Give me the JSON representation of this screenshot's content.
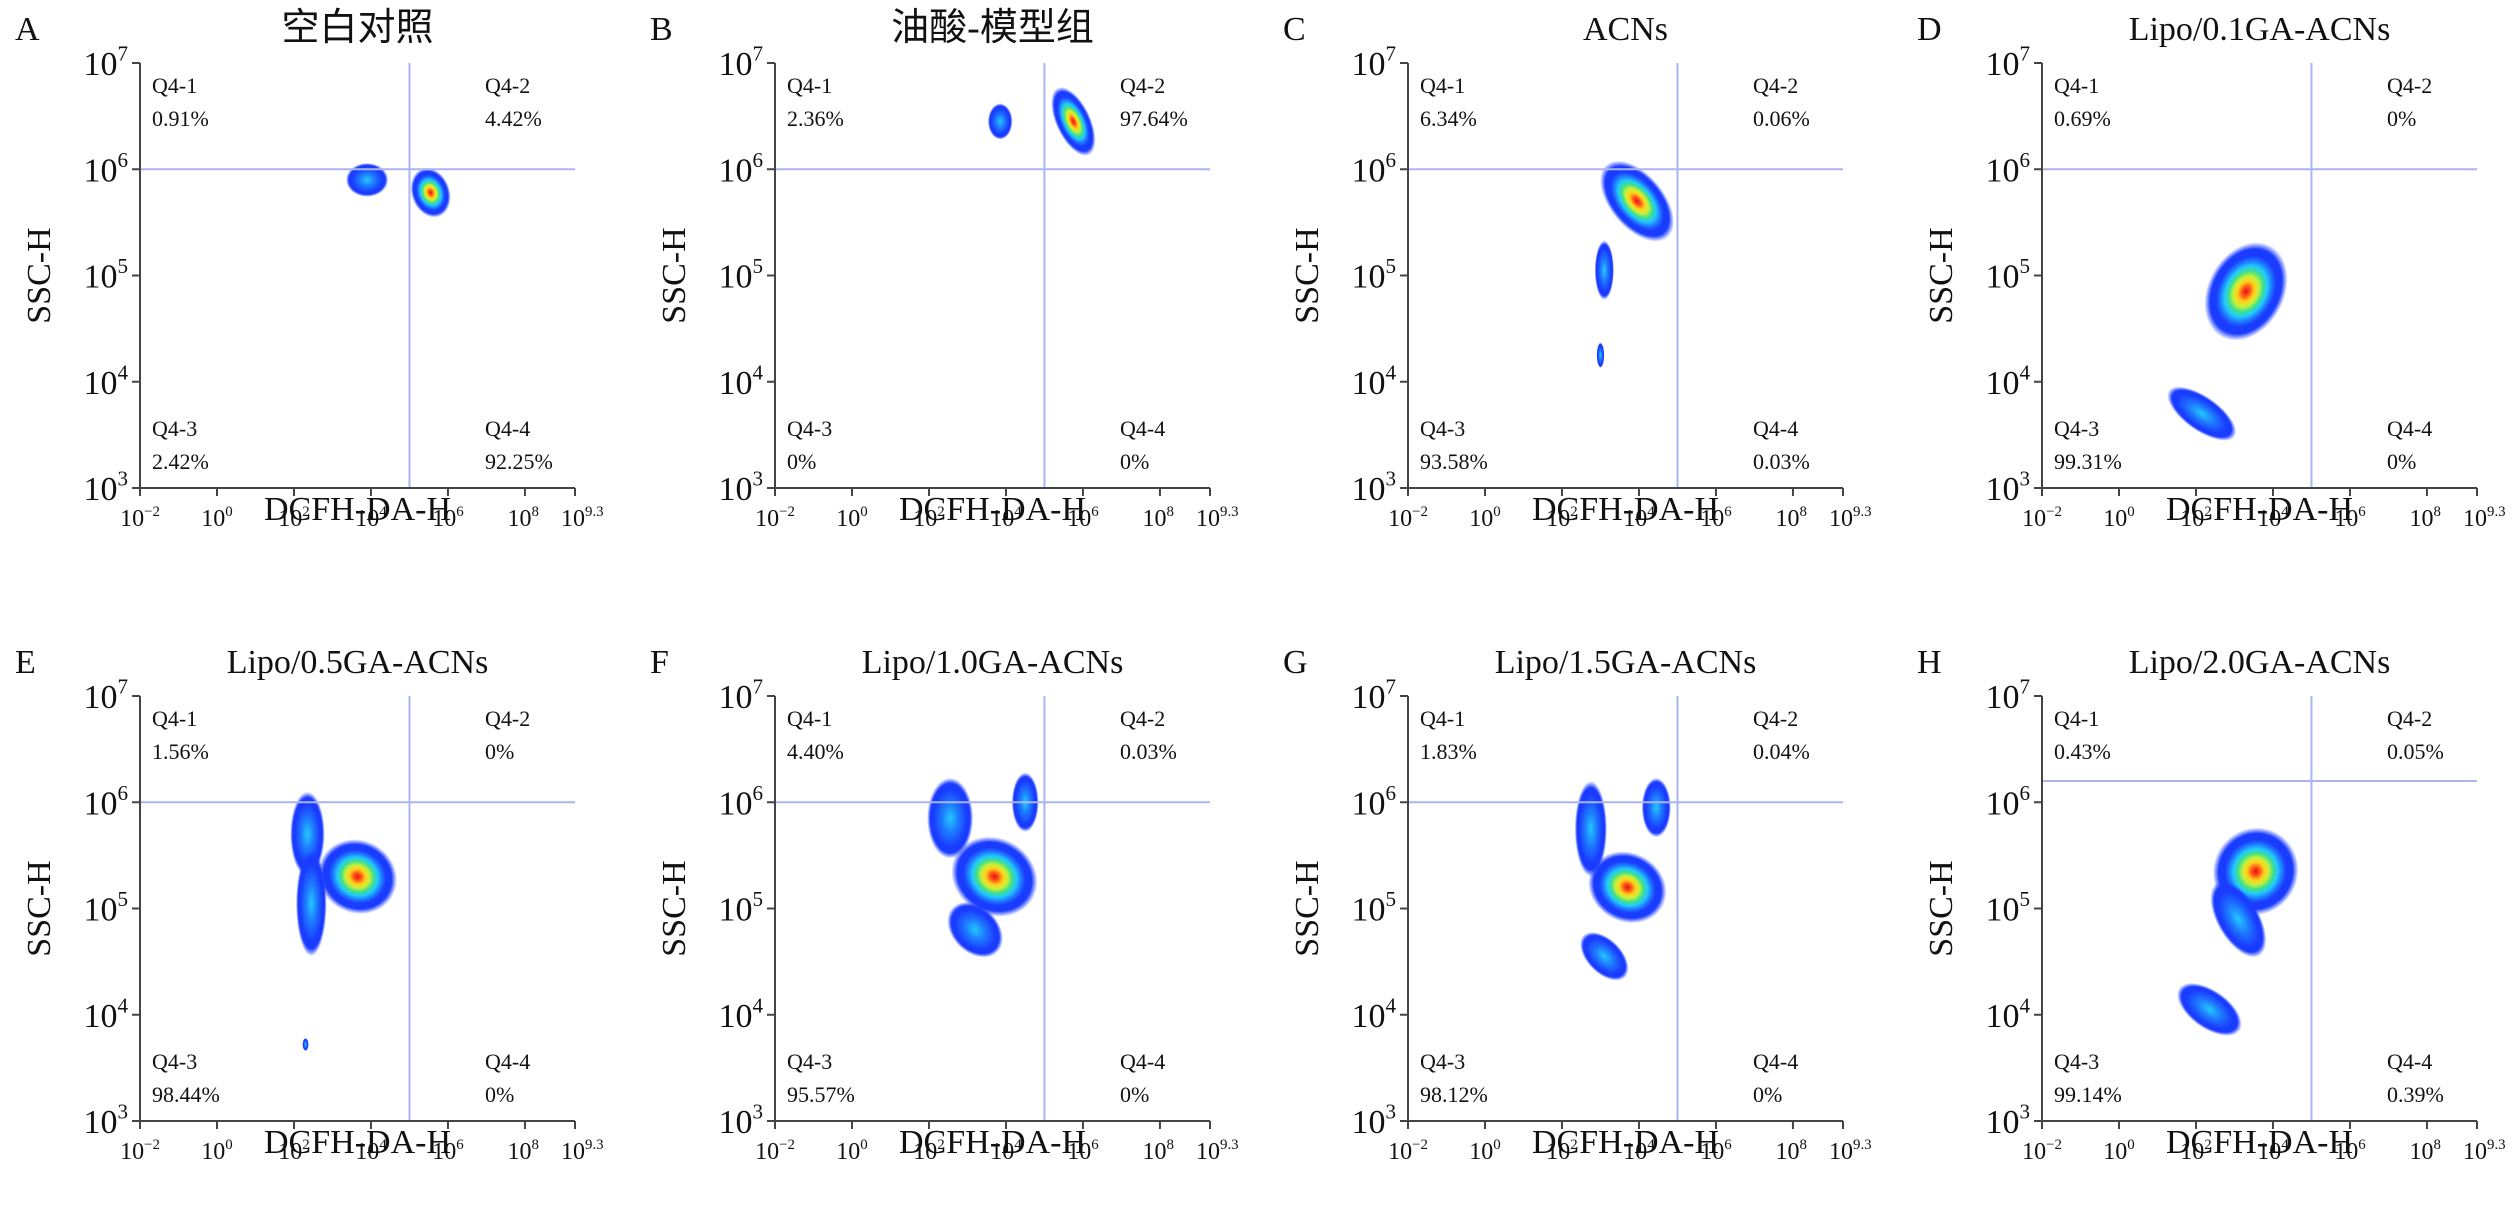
{
  "figure": {
    "x_axis_label": "DCFH-DA-H",
    "y_axis_label": "SSC-H",
    "x_ticks": [
      {
        "base": "10",
        "exp": "−2"
      },
      {
        "base": "10",
        "exp": "0"
      },
      {
        "base": "10",
        "exp": "2"
      },
      {
        "base": "10",
        "exp": "4"
      },
      {
        "base": "10",
        "exp": "6"
      },
      {
        "base": "10",
        "exp": "8"
      },
      {
        "base": "10",
        "exp": "9.3"
      }
    ],
    "y_ticks": [
      {
        "base": "10",
        "exp": "3"
      },
      {
        "base": "10",
        "exp": "4"
      },
      {
        "base": "10",
        "exp": "5"
      },
      {
        "base": "10",
        "exp": "6"
      },
      {
        "base": "10",
        "exp": "7"
      }
    ],
    "quadrant_names": [
      "Q4-1",
      "Q4-2",
      "Q4-3",
      "Q4-4"
    ],
    "density_colors": [
      "#1a3cff",
      "#1e7bff",
      "#22c9ff",
      "#3fe08a",
      "#c8f03a",
      "#ffd21a",
      "#ff5a1a",
      "#e81010"
    ],
    "gate_color": "#aab4f0"
  },
  "chart_data": [
    {
      "type": "density-scatter",
      "panel": "A",
      "title": "空白对照",
      "xlabel": "DCFH-DA-H",
      "ylabel": "SSC-H",
      "x_scale": "log10",
      "y_scale": "log10",
      "xlim_log10": [
        -2,
        9.3
      ],
      "ylim_log10": [
        3,
        7
      ],
      "gate_log10": {
        "x": 5.0,
        "y": 6.0
      },
      "quadrants": {
        "Q4-1": "0.91%",
        "Q4-2": "4.42%",
        "Q4-3": "2.42%",
        "Q4-4": "92.25%"
      },
      "populations": [
        {
          "x": 3.9,
          "y": 5.9,
          "rx": 0.55,
          "ry": 0.16,
          "angle": 0,
          "peak": 0.35
        },
        {
          "x": 5.55,
          "y": 5.78,
          "rx": 0.5,
          "ry": 0.24,
          "angle": 20,
          "peak": 1.0
        }
      ]
    },
    {
      "type": "density-scatter",
      "panel": "B",
      "title": "油酸-模型组",
      "xlabel": "DCFH-DA-H",
      "ylabel": "SSC-H",
      "x_scale": "log10",
      "y_scale": "log10",
      "xlim_log10": [
        -2,
        9.3
      ],
      "ylim_log10": [
        3,
        7
      ],
      "gate_log10": {
        "x": 5.0,
        "y": 6.0
      },
      "quadrants": {
        "Q4-1": "2.36%",
        "Q4-2": "97.64%",
        "Q4-3": "0%",
        "Q4-4": "0%"
      },
      "populations": [
        {
          "x": 3.85,
          "y": 6.45,
          "rx": 0.32,
          "ry": 0.17,
          "angle": 0,
          "peak": 0.3
        },
        {
          "x": 5.75,
          "y": 6.45,
          "rx": 0.45,
          "ry": 0.35,
          "angle": 25,
          "peak": 1.0
        }
      ]
    },
    {
      "type": "density-scatter",
      "panel": "C",
      "title": "ACNs",
      "xlabel": "DCFH-DA-H",
      "ylabel": "SSC-H",
      "x_scale": "log10",
      "y_scale": "log10",
      "xlim_log10": [
        -2,
        9.3
      ],
      "ylim_log10": [
        3,
        7
      ],
      "gate_log10": {
        "x": 5.0,
        "y": 6.0
      },
      "quadrants": {
        "Q4-1": "6.34%",
        "Q4-2": "0.06%",
        "Q4-3": "93.58%",
        "Q4-4": "0.03%"
      },
      "populations": [
        {
          "x": 3.95,
          "y": 5.7,
          "rx": 0.7,
          "ry": 0.45,
          "angle": 40,
          "peak": 1.0
        },
        {
          "x": 3.1,
          "y": 5.05,
          "rx": 0.25,
          "ry": 0.28,
          "angle": 0,
          "peak": 0.35
        },
        {
          "x": 3.0,
          "y": 4.25,
          "rx": 0.1,
          "ry": 0.12,
          "angle": 0,
          "peak": 0.25
        }
      ]
    },
    {
      "type": "density-scatter",
      "panel": "D",
      "title": "Lipo/0.1GA-ACNs",
      "xlabel": "DCFH-DA-H",
      "ylabel": "SSC-H",
      "x_scale": "log10",
      "y_scale": "log10",
      "xlim_log10": [
        -2,
        9.3
      ],
      "ylim_log10": [
        3,
        7
      ],
      "gate_log10": {
        "x": 5.0,
        "y": 6.0
      },
      "quadrants": {
        "Q4-1": "0.69%",
        "Q4-2": "0%",
        "Q4-3": "99.31%",
        "Q4-4": "0%"
      },
      "populations": [
        {
          "x": 3.3,
          "y": 4.85,
          "rx": 1.35,
          "ry": 0.36,
          "angle": 62,
          "peak": 1.0
        },
        {
          "x": 2.15,
          "y": 3.7,
          "rx": 0.45,
          "ry": 0.38,
          "angle": 55,
          "peak": 0.35
        }
      ]
    },
    {
      "type": "density-scatter",
      "panel": "E",
      "title": "Lipo/0.5GA-ACNs",
      "xlabel": "DCFH-DA-H",
      "ylabel": "SSC-H",
      "x_scale": "log10",
      "y_scale": "log10",
      "xlim_log10": [
        -2,
        9.3
      ],
      "ylim_log10": [
        3,
        7
      ],
      "gate_log10": {
        "x": 5.0,
        "y": 6.0
      },
      "quadrants": {
        "Q4-1": "1.56%",
        "Q4-2": "0%",
        "Q4-3": "98.44%",
        "Q4-4": "0%"
      },
      "populations": [
        {
          "x": 2.35,
          "y": 5.7,
          "rx": 0.45,
          "ry": 0.4,
          "angle": 0,
          "peak": 0.3
        },
        {
          "x": 3.65,
          "y": 5.3,
          "rx": 0.95,
          "ry": 0.38,
          "angle": 62,
          "peak": 1.0
        },
        {
          "x": 2.45,
          "y": 5.05,
          "rx": 0.4,
          "ry": 0.5,
          "angle": 0,
          "peak": 0.3
        },
        {
          "x": 2.3,
          "y": 3.72,
          "rx": 0.08,
          "ry": 0.06,
          "angle": 0,
          "peak": 0.25
        }
      ]
    },
    {
      "type": "density-scatter",
      "panel": "F",
      "title": "Lipo/1.0GA-ACNs",
      "xlabel": "DCFH-DA-H",
      "ylabel": "SSC-H",
      "x_scale": "log10",
      "y_scale": "log10",
      "xlim_log10": [
        -2,
        9.3
      ],
      "ylim_log10": [
        3,
        7
      ],
      "gate_log10": {
        "x": 5.0,
        "y": 6.0
      },
      "quadrants": {
        "Q4-1": "4.40%",
        "Q4-2": "0.03%",
        "Q4-3": "95.57%",
        "Q4-4": "0%"
      },
      "populations": [
        {
          "x": 2.55,
          "y": 5.85,
          "rx": 0.6,
          "ry": 0.38,
          "angle": 0,
          "peak": 0.3
        },
        {
          "x": 3.7,
          "y": 5.3,
          "rx": 1.0,
          "ry": 0.42,
          "angle": 60,
          "peak": 1.0
        },
        {
          "x": 4.5,
          "y": 6.0,
          "rx": 0.35,
          "ry": 0.28,
          "angle": 0,
          "peak": 0.3
        },
        {
          "x": 3.2,
          "y": 4.8,
          "rx": 0.6,
          "ry": 0.3,
          "angle": 45,
          "peak": 0.4
        }
      ]
    },
    {
      "type": "density-scatter",
      "panel": "G",
      "title": "Lipo/1.5GA-ACNs",
      "xlabel": "DCFH-DA-H",
      "ylabel": "SSC-H",
      "x_scale": "log10",
      "y_scale": "log10",
      "xlim_log10": [
        -2,
        9.3
      ],
      "ylim_log10": [
        3,
        7
      ],
      "gate_log10": {
        "x": 5.0,
        "y": 6.0
      },
      "quadrants": {
        "Q4-1": "1.83%",
        "Q4-2": "0.04%",
        "Q4-3": "98.12%",
        "Q4-4": "0%"
      },
      "populations": [
        {
          "x": 2.75,
          "y": 5.75,
          "rx": 0.42,
          "ry": 0.45,
          "angle": 0,
          "peak": 0.3
        },
        {
          "x": 3.7,
          "y": 5.2,
          "rx": 0.9,
          "ry": 0.38,
          "angle": 62,
          "peak": 1.0
        },
        {
          "x": 4.45,
          "y": 5.95,
          "rx": 0.38,
          "ry": 0.28,
          "angle": 0,
          "peak": 0.3
        },
        {
          "x": 3.1,
          "y": 4.55,
          "rx": 0.45,
          "ry": 0.28,
          "angle": 45,
          "peak": 0.4
        }
      ]
    },
    {
      "type": "density-scatter",
      "panel": "H",
      "title": "Lipo/2.0GA-ACNs",
      "xlabel": "DCFH-DA-H",
      "ylabel": "SSC-H",
      "x_scale": "log10",
      "y_scale": "log10",
      "xlim_log10": [
        -2,
        9.3
      ],
      "ylim_log10": [
        3,
        7
      ],
      "gate_log10": {
        "x": 5.0,
        "y": 6.2
      },
      "quadrants": {
        "Q4-1": "0.43%",
        "Q4-2": "0.05%",
        "Q4-3": "99.14%",
        "Q4-4": "0.39%"
      },
      "populations": [
        {
          "x": 3.55,
          "y": 5.35,
          "rx": 1.15,
          "ry": 0.4,
          "angle": 62,
          "peak": 1.0
        },
        {
          "x": 2.35,
          "y": 4.05,
          "rx": 0.5,
          "ry": 0.35,
          "angle": 55,
          "peak": 0.35
        },
        {
          "x": 3.1,
          "y": 4.9,
          "rx": 0.55,
          "ry": 0.4,
          "angle": 30,
          "peak": 0.4
        }
      ]
    }
  ]
}
